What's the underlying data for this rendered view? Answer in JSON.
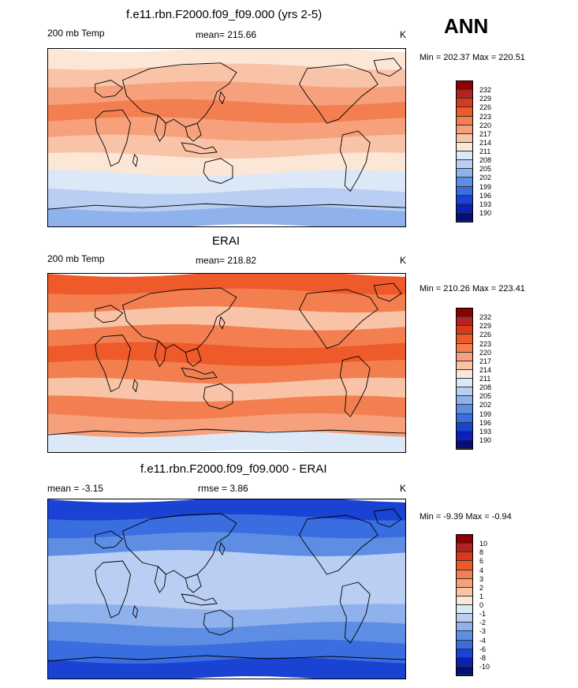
{
  "season": "ANN",
  "panels": [
    {
      "title": "f.e11.rbn.F2000.f09_f09.000 (yrs 2-5)",
      "left_label": "200 mb Temp",
      "center_label": "mean= 215.66",
      "units": "K",
      "minmax": "Min = 202.37 Max = 220.51",
      "colorbar_labels": [
        "232",
        "229",
        "226",
        "223",
        "220",
        "217",
        "214",
        "211",
        "208",
        "205",
        "202",
        "199",
        "196",
        "193",
        "190"
      ],
      "colorbar_colors": [
        "#8b0000",
        "#b22222",
        "#d83a1a",
        "#ee5a2a",
        "#f37f50",
        "#f6a07c",
        "#f8c3a6",
        "#fce6d6",
        "#dbe8f7",
        "#b9cef2",
        "#90b2ec",
        "#5e8ee4",
        "#3a6de0",
        "#1a43d3",
        "#0c20b8",
        "#050f7a"
      ],
      "bands": [
        {
          "color": "#fce6d6"
        },
        {
          "color": "#f8c3a6"
        },
        {
          "color": "#f6a07c"
        },
        {
          "color": "#f37f50"
        },
        {
          "color": "#f6a07c"
        },
        {
          "color": "#f8c3a6"
        },
        {
          "color": "#fce6d6"
        },
        {
          "color": "#dbe8f7"
        },
        {
          "color": "#b9cef2"
        },
        {
          "color": "#90b2ec"
        }
      ]
    },
    {
      "title": "ERAI",
      "left_label": "200 mb Temp",
      "center_label": "mean= 218.82",
      "units": "K",
      "minmax": "Min = 210.26 Max = 223.41",
      "colorbar_labels": [
        "232",
        "229",
        "226",
        "223",
        "220",
        "217",
        "214",
        "211",
        "208",
        "205",
        "202",
        "199",
        "196",
        "193",
        "190"
      ],
      "colorbar_colors": [
        "#8b0000",
        "#b22222",
        "#d83a1a",
        "#ee5a2a",
        "#f37f50",
        "#f6a07c",
        "#f8c3a6",
        "#fce6d6",
        "#dbe8f7",
        "#b9cef2",
        "#90b2ec",
        "#5e8ee4",
        "#3a6de0",
        "#1a43d3",
        "#0c20b8",
        "#050f7a"
      ],
      "bands": [
        {
          "color": "#ee5a2a"
        },
        {
          "color": "#f37f50"
        },
        {
          "color": "#f8c3a6"
        },
        {
          "color": "#f37f50"
        },
        {
          "color": "#ee5a2a"
        },
        {
          "color": "#f37f50"
        },
        {
          "color": "#f8c3a6"
        },
        {
          "color": "#f37f50"
        },
        {
          "color": "#f6a07c"
        },
        {
          "color": "#dbe8f7"
        }
      ]
    },
    {
      "title": "f.e11.rbn.F2000.f09_f09.000 - ERAI",
      "left_label": "mean =  -3.15",
      "center_label": "rmse =   3.86",
      "units": "K",
      "minmax": "Min =  -9.39 Max =  -0.94",
      "colorbar_labels": [
        "10",
        "8",
        "6",
        "4",
        "3",
        "2",
        "1",
        "0",
        "-1",
        "-2",
        "-3",
        "-4",
        "-6",
        "-8",
        "-10"
      ],
      "colorbar_colors": [
        "#8b0000",
        "#b22222",
        "#d83a1a",
        "#ee5a2a",
        "#f37f50",
        "#f6a07c",
        "#f8c3a6",
        "#fce6d6",
        "#dbe8f7",
        "#b9cef2",
        "#90b2ec",
        "#5e8ee4",
        "#3a6de0",
        "#1a43d3",
        "#0c20b8",
        "#050f7a"
      ],
      "bands": [
        {
          "color": "#1a43d3"
        },
        {
          "color": "#3a6de0"
        },
        {
          "color": "#5e8ee4"
        },
        {
          "color": "#b9cef2"
        },
        {
          "color": "#b9cef2"
        },
        {
          "color": "#b9cef2"
        },
        {
          "color": "#90b2ec"
        },
        {
          "color": "#5e8ee4"
        },
        {
          "color": "#3a6de0"
        },
        {
          "color": "#1a43d3"
        }
      ]
    }
  ]
}
